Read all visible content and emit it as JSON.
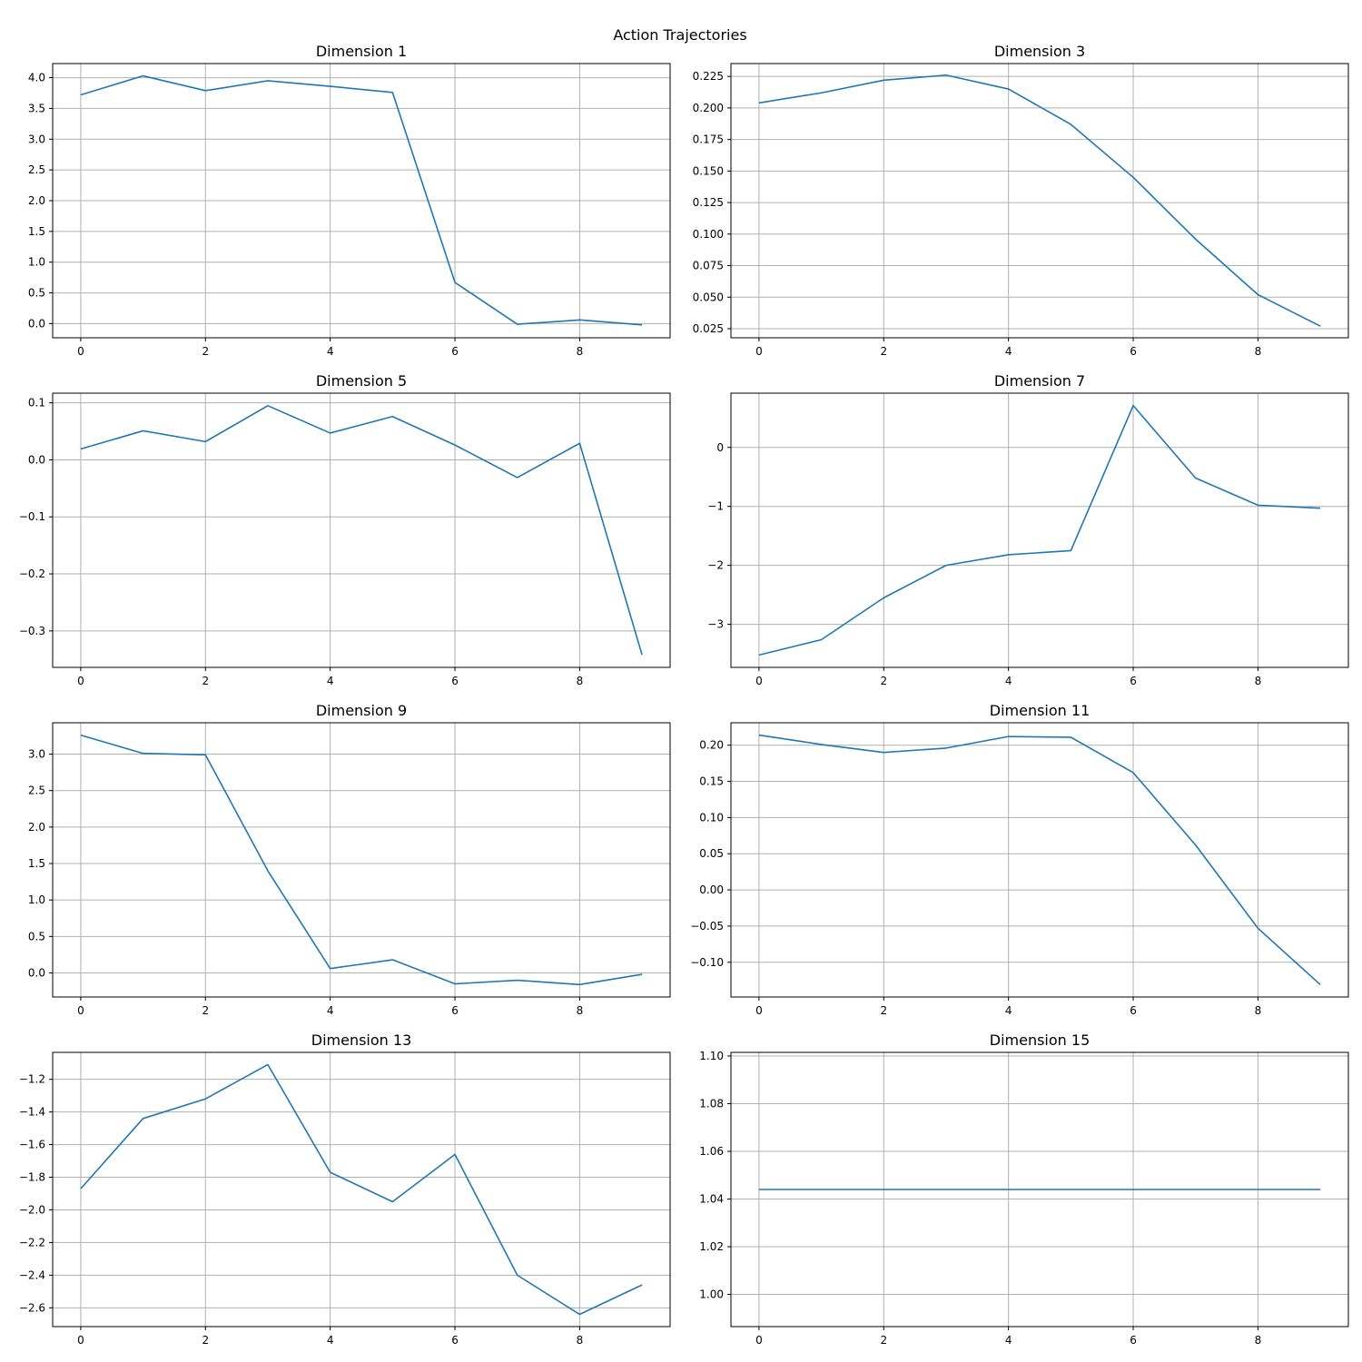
{
  "chart_data": {
    "title": "Action Trajectories",
    "type": "line",
    "series_color": "#1f77b4",
    "grid": true,
    "panels": [
      {
        "title": "Dimension 1",
        "x": [
          0,
          1,
          2,
          3,
          4,
          5,
          6,
          7,
          8,
          9
        ],
        "y": [
          3.72,
          4.03,
          3.79,
          3.95,
          3.86,
          3.76,
          0.67,
          -0.01,
          0.06,
          -0.02
        ],
        "ylim": [
          -0.23,
          4.23
        ],
        "yticks": [
          0.0,
          0.5,
          1.0,
          1.5,
          2.0,
          2.5,
          3.0,
          3.5,
          4.0
        ],
        "ytick_labels": [
          "0.0",
          "0.5",
          "1.0",
          "1.5",
          "2.0",
          "2.5",
          "3.0",
          "3.5",
          "4.0"
        ],
        "xticks": [
          0,
          2,
          4,
          6,
          8
        ],
        "xtick_labels": [
          "0",
          "2",
          "4",
          "6",
          "8"
        ]
      },
      {
        "title": "Dimension 3",
        "x": [
          0,
          1,
          2,
          3,
          4,
          5,
          6,
          7,
          8,
          9
        ],
        "y": [
          0.204,
          0.212,
          0.222,
          0.226,
          0.215,
          0.187,
          0.145,
          0.096,
          0.052,
          0.027
        ],
        "ylim": [
          0.0178,
          0.2352
        ],
        "yticks": [
          0.025,
          0.05,
          0.075,
          0.1,
          0.125,
          0.15,
          0.175,
          0.2,
          0.225
        ],
        "ytick_labels": [
          "0.025",
          "0.050",
          "0.075",
          "0.100",
          "0.125",
          "0.150",
          "0.175",
          "0.200",
          "0.225"
        ],
        "xticks": [
          0,
          2,
          4,
          6,
          8
        ],
        "xtick_labels": [
          "0",
          "2",
          "4",
          "6",
          "8"
        ]
      },
      {
        "title": "Dimension 5",
        "x": [
          0,
          1,
          2,
          3,
          4,
          5,
          6,
          7,
          8,
          9
        ],
        "y": [
          0.019,
          0.051,
          0.032,
          0.095,
          0.047,
          0.076,
          0.026,
          -0.031,
          0.029,
          -0.342
        ],
        "ylim": [
          -0.364,
          0.117
        ],
        "yticks": [
          -0.3,
          -0.2,
          -0.1,
          0.0,
          0.1
        ],
        "ytick_labels": [
          "−0.3",
          "−0.2",
          "−0.1",
          "0.0",
          "0.1"
        ],
        "xticks": [
          0,
          2,
          4,
          6,
          8
        ],
        "xtick_labels": [
          "0",
          "2",
          "4",
          "6",
          "8"
        ]
      },
      {
        "title": "Dimension 7",
        "x": [
          0,
          1,
          2,
          3,
          4,
          5,
          6,
          7,
          8,
          9
        ],
        "y": [
          -3.52,
          -3.26,
          -2.55,
          -2.0,
          -1.82,
          -1.75,
          0.71,
          -0.52,
          -0.98,
          -1.03
        ],
        "ylim": [
          -3.73,
          0.92
        ],
        "yticks": [
          -3,
          -2,
          -1,
          0
        ],
        "ytick_labels": [
          "−3",
          "−2",
          "−1",
          "0"
        ],
        "xticks": [
          0,
          2,
          4,
          6,
          8
        ],
        "xtick_labels": [
          "0",
          "2",
          "4",
          "6",
          "8"
        ]
      },
      {
        "title": "Dimension 9",
        "x": [
          0,
          1,
          2,
          3,
          4,
          5,
          6,
          7,
          8,
          9
        ],
        "y": [
          3.26,
          3.01,
          2.99,
          1.4,
          0.06,
          0.18,
          -0.15,
          -0.1,
          -0.16,
          -0.02
        ],
        "ylim": [
          -0.33,
          3.43
        ],
        "yticks": [
          0.0,
          0.5,
          1.0,
          1.5,
          2.0,
          2.5,
          3.0
        ],
        "ytick_labels": [
          "0.0",
          "0.5",
          "1.0",
          "1.5",
          "2.0",
          "2.5",
          "3.0"
        ],
        "xticks": [
          0,
          2,
          4,
          6,
          8
        ],
        "xtick_labels": [
          "0",
          "2",
          "4",
          "6",
          "8"
        ]
      },
      {
        "title": "Dimension 11",
        "x": [
          0,
          1,
          2,
          3,
          4,
          5,
          6,
          7,
          8,
          9
        ],
        "y": [
          0.214,
          0.201,
          0.19,
          0.196,
          0.212,
          0.211,
          0.162,
          0.062,
          -0.053,
          -0.131
        ],
        "ylim": [
          -0.148,
          0.231
        ],
        "yticks": [
          -0.1,
          -0.05,
          0.0,
          0.05,
          0.1,
          0.15,
          0.2
        ],
        "ytick_labels": [
          "−0.10",
          "−0.05",
          "0.00",
          "0.05",
          "0.10",
          "0.15",
          "0.20"
        ],
        "xticks": [
          0,
          2,
          4,
          6,
          8
        ],
        "xtick_labels": [
          "0",
          "2",
          "4",
          "6",
          "8"
        ]
      },
      {
        "title": "Dimension 13",
        "x": [
          0,
          1,
          2,
          3,
          4,
          5,
          6,
          7,
          8,
          9
        ],
        "y": [
          -1.87,
          -1.44,
          -1.32,
          -1.11,
          -1.77,
          -1.95,
          -1.66,
          -2.4,
          -2.64,
          -2.46
        ],
        "ylim": [
          -2.715,
          -1.035
        ],
        "yticks": [
          -2.6,
          -2.4,
          -2.2,
          -2.0,
          -1.8,
          -1.6,
          -1.4,
          -1.2
        ],
        "ytick_labels": [
          "−2.6",
          "−2.4",
          "−2.2",
          "−2.0",
          "−1.8",
          "−1.6",
          "−1.4",
          "−1.2"
        ],
        "xticks": [
          0,
          2,
          4,
          6,
          8
        ],
        "xtick_labels": [
          "0",
          "2",
          "4",
          "6",
          "8"
        ]
      },
      {
        "title": "Dimension 15",
        "x": [
          0,
          1,
          2,
          3,
          4,
          5,
          6,
          7,
          8,
          9
        ],
        "y": [
          1.044,
          1.044,
          1.044,
          1.044,
          1.044,
          1.044,
          1.044,
          1.044,
          1.044,
          1.044
        ],
        "ylim": [
          0.9865,
          1.1015
        ],
        "yticks": [
          1.0,
          1.02,
          1.04,
          1.06,
          1.08,
          1.1
        ],
        "ytick_labels": [
          "1.00",
          "1.02",
          "1.04",
          "1.06",
          "1.08",
          "1.10"
        ],
        "xticks": [
          0,
          2,
          4,
          6,
          8
        ],
        "xtick_labels": [
          "0",
          "2",
          "4",
          "6",
          "8"
        ]
      }
    ]
  }
}
